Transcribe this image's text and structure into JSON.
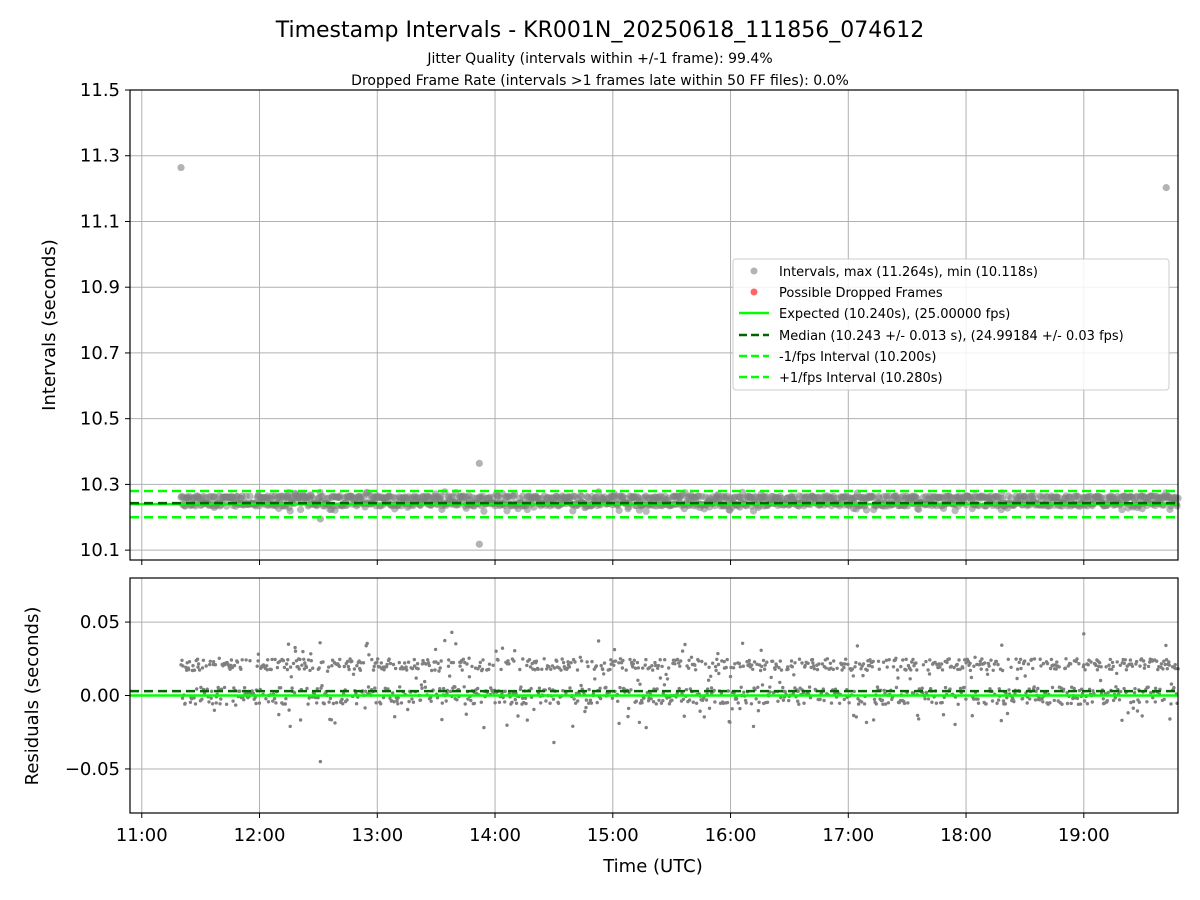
{
  "title": "Timestamp Intervals - KR001N_20250618_111856_074612",
  "subtitle_lines": [
    "Jitter Quality (intervals within +/-1 frame): 99.4%",
    "Dropped Frame Rate (intervals >1 frames late within 50 FF files): 0.0%"
  ],
  "colors": {
    "intervals": "#808080",
    "dropped": "#ff0000",
    "expected": "#00ff00",
    "median": "#006400",
    "fps_bounds": "#00ff00",
    "grid": "#b0b0b0"
  },
  "chart_data": [
    {
      "type": "scatter",
      "ylabel": "Intervals (seconds)",
      "xlabel": "",
      "xlim": [
        "10:54",
        "19:48"
      ],
      "ylim": [
        10.07,
        11.5
      ],
      "yticks": [
        "10.1",
        "10.3",
        "10.5",
        "10.7",
        "10.9",
        "11.1",
        "11.3",
        "11.5"
      ],
      "grid": true,
      "legend_position": "right",
      "series": [
        {
          "name": "Intervals, max (11.264s), min (10.118s)",
          "kind": "scatter",
          "color": "#808080",
          "x_range": [
            "11:20",
            "19:48"
          ],
          "typical_range": [
            10.22,
            10.28
          ],
          "notable_points": [
            {
              "x": "11:20",
              "y": 11.264
            },
            {
              "x": "19:42",
              "y": 11.203
            },
            {
              "x": "13:52",
              "y": 10.364
            },
            {
              "x": "13:52",
              "y": 10.118
            },
            {
              "x": "12:31",
              "y": 10.195
            }
          ]
        },
        {
          "name": "Possible Dropped Frames",
          "kind": "scatter",
          "color": "#ff0000",
          "points": []
        },
        {
          "name": "Expected (10.240s), (25.00000 fps)",
          "kind": "hline",
          "y": 10.24,
          "color": "#00ff00",
          "style": "solid"
        },
        {
          "name": "Median (10.243 +/- 0.013 s), (24.99184 +/- 0.03 fps)",
          "kind": "hline",
          "y": 10.243,
          "color": "#006400",
          "style": "dashed"
        },
        {
          "name": "-1/fps Interval (10.200s)",
          "kind": "hline",
          "y": 10.2,
          "color": "#00ff00",
          "style": "dashed"
        },
        {
          "name": "+1/fps Interval (10.280s)",
          "kind": "hline",
          "y": 10.28,
          "color": "#00ff00",
          "style": "dashed"
        }
      ]
    },
    {
      "type": "scatter",
      "ylabel": "Residuals (seconds)",
      "xlabel": "Time (UTC)",
      "xlim": [
        "10:54",
        "19:48"
      ],
      "ylim": [
        -0.08,
        0.08
      ],
      "yticks": [
        "−0.05",
        "0.00",
        "0.05"
      ],
      "xticks": [
        "11:00",
        "12:00",
        "13:00",
        "14:00",
        "15:00",
        "16:00",
        "17:00",
        "18:00",
        "19:00"
      ],
      "grid": true,
      "series": [
        {
          "kind": "scatter",
          "color": "#808080",
          "x_range": [
            "11:20",
            "19:48"
          ],
          "typical_range": [
            -0.025,
            0.04
          ],
          "notable_points": [
            {
              "x": "12:31",
              "y": -0.045
            },
            {
              "x": "14:30",
              "y": -0.032
            },
            {
              "x": "13:38",
              "y": 0.043
            },
            {
              "x": "19:00",
              "y": 0.042
            }
          ]
        },
        {
          "kind": "hline",
          "y": 0.0,
          "color": "#00ff00",
          "style": "solid"
        },
        {
          "kind": "hline",
          "y": 0.003,
          "color": "#006400",
          "style": "dashed"
        }
      ]
    }
  ]
}
